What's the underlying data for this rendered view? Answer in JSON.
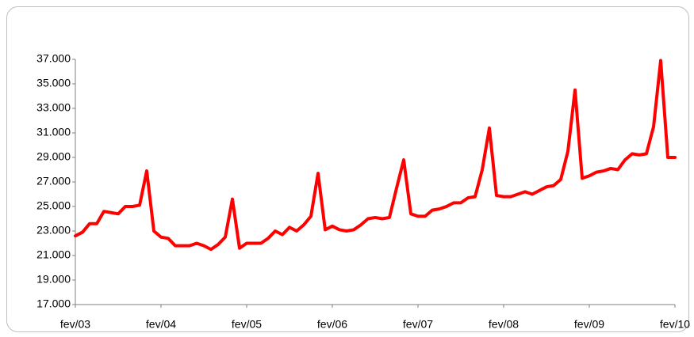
{
  "chart_data": {
    "type": "line",
    "categories": [
      "fev/03",
      null,
      null,
      null,
      null,
      null,
      null,
      null,
      null,
      null,
      null,
      null,
      "fev/04",
      null,
      null,
      null,
      null,
      null,
      null,
      null,
      null,
      null,
      null,
      null,
      "fev/05",
      null,
      null,
      null,
      null,
      null,
      null,
      null,
      null,
      null,
      null,
      null,
      "fev/06",
      null,
      null,
      null,
      null,
      null,
      null,
      null,
      null,
      null,
      null,
      null,
      "fev/07",
      null,
      null,
      null,
      null,
      null,
      null,
      null,
      null,
      null,
      null,
      null,
      "fev/08",
      null,
      null,
      null,
      null,
      null,
      null,
      null,
      null,
      null,
      null,
      null,
      "fev/09",
      null,
      null,
      null,
      null,
      null,
      null,
      null,
      null,
      null,
      null,
      null,
      "fev/10"
    ],
    "values": [
      22600,
      22900,
      23600,
      23600,
      24600,
      24500,
      24400,
      25000,
      25000,
      25100,
      27900,
      23000,
      22500,
      22400,
      21800,
      21800,
      21800,
      22000,
      21800,
      21500,
      21900,
      22500,
      25600,
      21600,
      22000,
      22000,
      22000,
      22400,
      23000,
      22700,
      23300,
      23000,
      23500,
      24200,
      27700,
      23100,
      23400,
      23100,
      23000,
      23100,
      23500,
      24000,
      24100,
      24000,
      24100,
      26500,
      28800,
      24400,
      24200,
      24200,
      24700,
      24800,
      25000,
      25300,
      25300,
      25700,
      25800,
      28000,
      31400,
      25900,
      25800,
      25800,
      26000,
      26200,
      26000,
      26300,
      26600,
      26700,
      27200,
      29500,
      34500,
      27300,
      27500,
      27800,
      27900,
      28100,
      28000,
      28800,
      29300,
      29200,
      29300,
      31500,
      36900,
      29000,
      29000
    ],
    "color": "#ff0000",
    "ylim": [
      17000,
      37000
    ],
    "yticks": [
      {
        "value": 17000,
        "label": "17.000"
      },
      {
        "value": 19000,
        "label": "19.000"
      },
      {
        "value": 21000,
        "label": "21.000"
      },
      {
        "value": 23000,
        "label": "23.000"
      },
      {
        "value": 25000,
        "label": "25.000"
      },
      {
        "value": 27000,
        "label": "27.000"
      },
      {
        "value": 29000,
        "label": "29.000"
      },
      {
        "value": 31000,
        "label": "31.000"
      },
      {
        "value": 33000,
        "label": "33.000"
      },
      {
        "value": 35000,
        "label": "35.000"
      },
      {
        "value": 37000,
        "label": "37.000"
      }
    ],
    "grid": false
  }
}
